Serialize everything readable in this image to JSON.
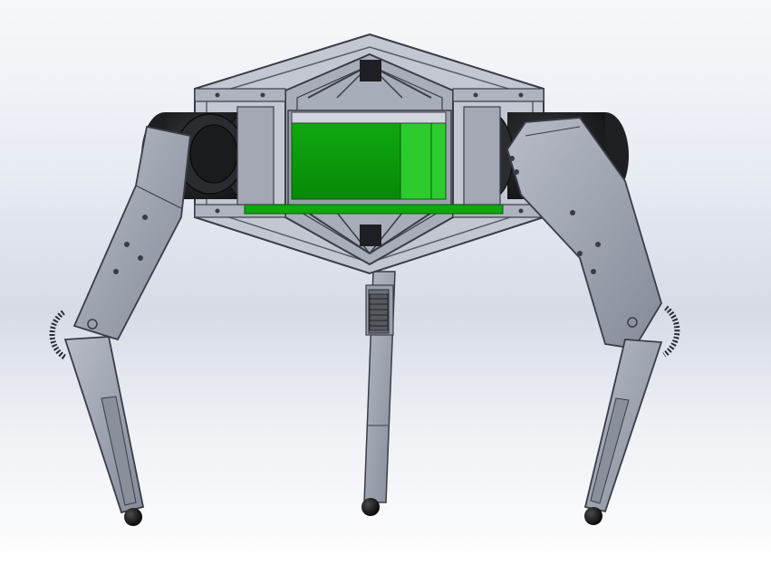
{
  "scene": {
    "subject": "quadruped-robot-cad-render",
    "colors": {
      "background_top": "#f7f8fb",
      "background_mid": "#d6dbe6",
      "aluminum": "#9a9fae",
      "aluminum_light": "#b7bcc8",
      "aluminum_dark": "#6e7382",
      "edge": "#3a3d47",
      "battery_green": "#0fa80f",
      "battery_green_light": "#2dcc2d",
      "motor_black": "#1e1f22",
      "foot_black": "#111111"
    },
    "components": [
      "top-frame",
      "motor-left",
      "motor-right",
      "battery-pack",
      "front-leg-left",
      "front-leg-right",
      "rear-leg-center",
      "foot-left",
      "foot-right",
      "foot-center"
    ]
  }
}
